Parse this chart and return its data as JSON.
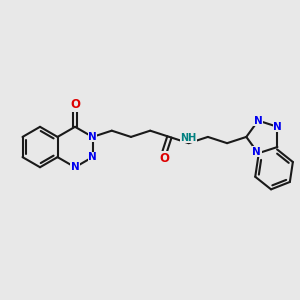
{
  "bg_color": "#e8e8e8",
  "bond_color": "#1a1a1a",
  "bond_width": 1.5,
  "atom_colors": {
    "N": "#0000ee",
    "O": "#dd0000",
    "NH": "#008080"
  },
  "font_size": 7.5,
  "fig_size": [
    3.0,
    3.0
  ],
  "dpi": 100,
  "xl": 0,
  "xr": 10,
  "yb": 0,
  "yt": 10
}
